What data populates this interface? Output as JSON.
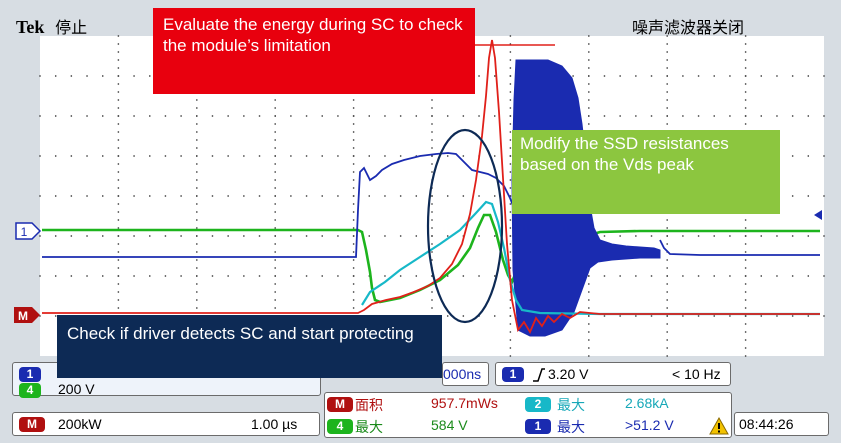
{
  "header": {
    "brand": "Tek",
    "run_state": "停止",
    "noise_filter": "噪声滤波器关闭"
  },
  "annotations": {
    "energy": "Evaluate the energy during SC to check the module’s limitation",
    "ssd": "Modify the SSD resistances based on the Vds peak",
    "driver": "Check if driver detects SC and start protecting"
  },
  "markers": {
    "ch1": "1",
    "math": "M"
  },
  "readouts": {
    "ch1_chip": "1",
    "ch4_chip": "4",
    "ch4_scale": "200 V",
    "math_chip": "M",
    "math_scale": "200kW",
    "time_div": "1.00 µs",
    "time_frag": "000ns",
    "trig_chip": "1",
    "trig_level": "3.20 V",
    "trig_freq": "< 10 Hz",
    "meas1_label": "面积",
    "meas1_value": "957.7mWs",
    "meas2_chip": "2",
    "meas2_label": "最大",
    "meas2_value": "2.68kA",
    "meas3_chip": "4",
    "meas3_label": "最大",
    "meas3_value": "584 V",
    "meas4_chip": "1",
    "meas4_label": "最大",
    "meas4_value": ">51.2 V",
    "clock": "08:44:26"
  },
  "colors": {
    "ch1": "#1a2bb0",
    "ch2": "#17b8c8",
    "ch4": "#1db41d",
    "math": "#e0201a",
    "grid": "#000000"
  }
}
